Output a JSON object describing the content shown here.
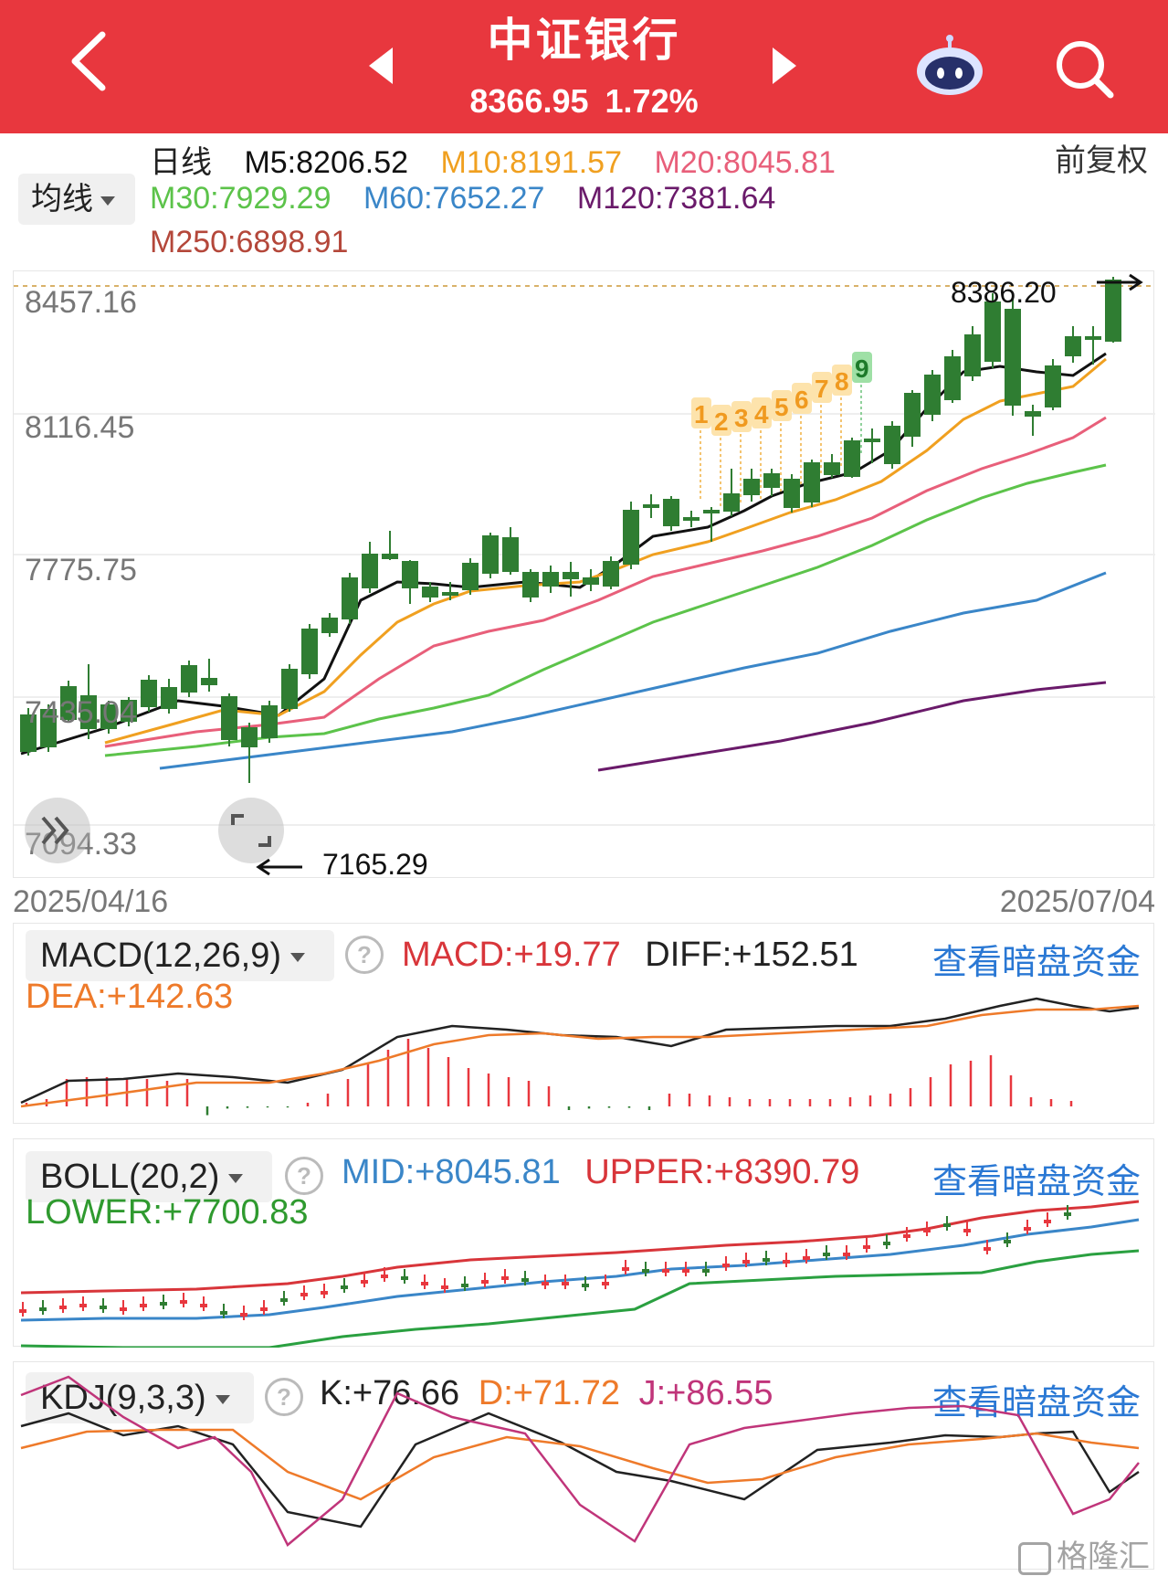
{
  "header": {
    "title": "中证银行",
    "price": "8366.95",
    "change_pct": "1.72%"
  },
  "ma_panel": {
    "period": "日线",
    "ma5": "M5:8206.52",
    "ma10": "M10:8191.57",
    "ma20": "M20:8045.81",
    "ma30": "M30:7929.29",
    "ma60": "M60:7652.27",
    "ma120": "M120:7381.64",
    "ma250": "M250:6898.91",
    "selector": "均线",
    "adjust": "前复权"
  },
  "main_chart": {
    "y_labels": [
      "8457.16",
      "8116.45",
      "7775.75",
      "7435.04",
      "7094.33"
    ],
    "high_label": "8386.20",
    "low_label": "7165.29",
    "start_date": "2025/04/16",
    "end_date": "2025/07/04",
    "td_count": [
      "1",
      "2",
      "3",
      "4",
      "5",
      "6",
      "7",
      "8",
      "9"
    ]
  },
  "macd": {
    "selector": "MACD(12,26,9)",
    "macd": "MACD:+19.77",
    "diff": "DIFF:+152.51",
    "dea": "DEA:+142.63",
    "link": "查看暗盘资金"
  },
  "boll": {
    "selector": "BOLL(20,2)",
    "mid": "MID:+8045.81",
    "upper": "UPPER:+8390.79",
    "lower": "LOWER:+7700.83",
    "link": "查看暗盘资金"
  },
  "kdj": {
    "selector": "KDJ(9,3,3)",
    "k": "K:+76.66",
    "d": "D:+71.72",
    "j": "J:+86.55",
    "link": "查看暗盘资金"
  },
  "watermark": "格隆汇",
  "colors": {
    "header": "#e8373e",
    "up": "#e8373e",
    "down": "#2f7d32",
    "ma5": "#111111",
    "ma10": "#f0a020",
    "ma20": "#e85f7a",
    "ma30": "#5cc34a",
    "ma60": "#3a86c8",
    "ma120": "#6a1a6a",
    "ma250": "#b4473a",
    "link": "#2a78d4"
  }
}
